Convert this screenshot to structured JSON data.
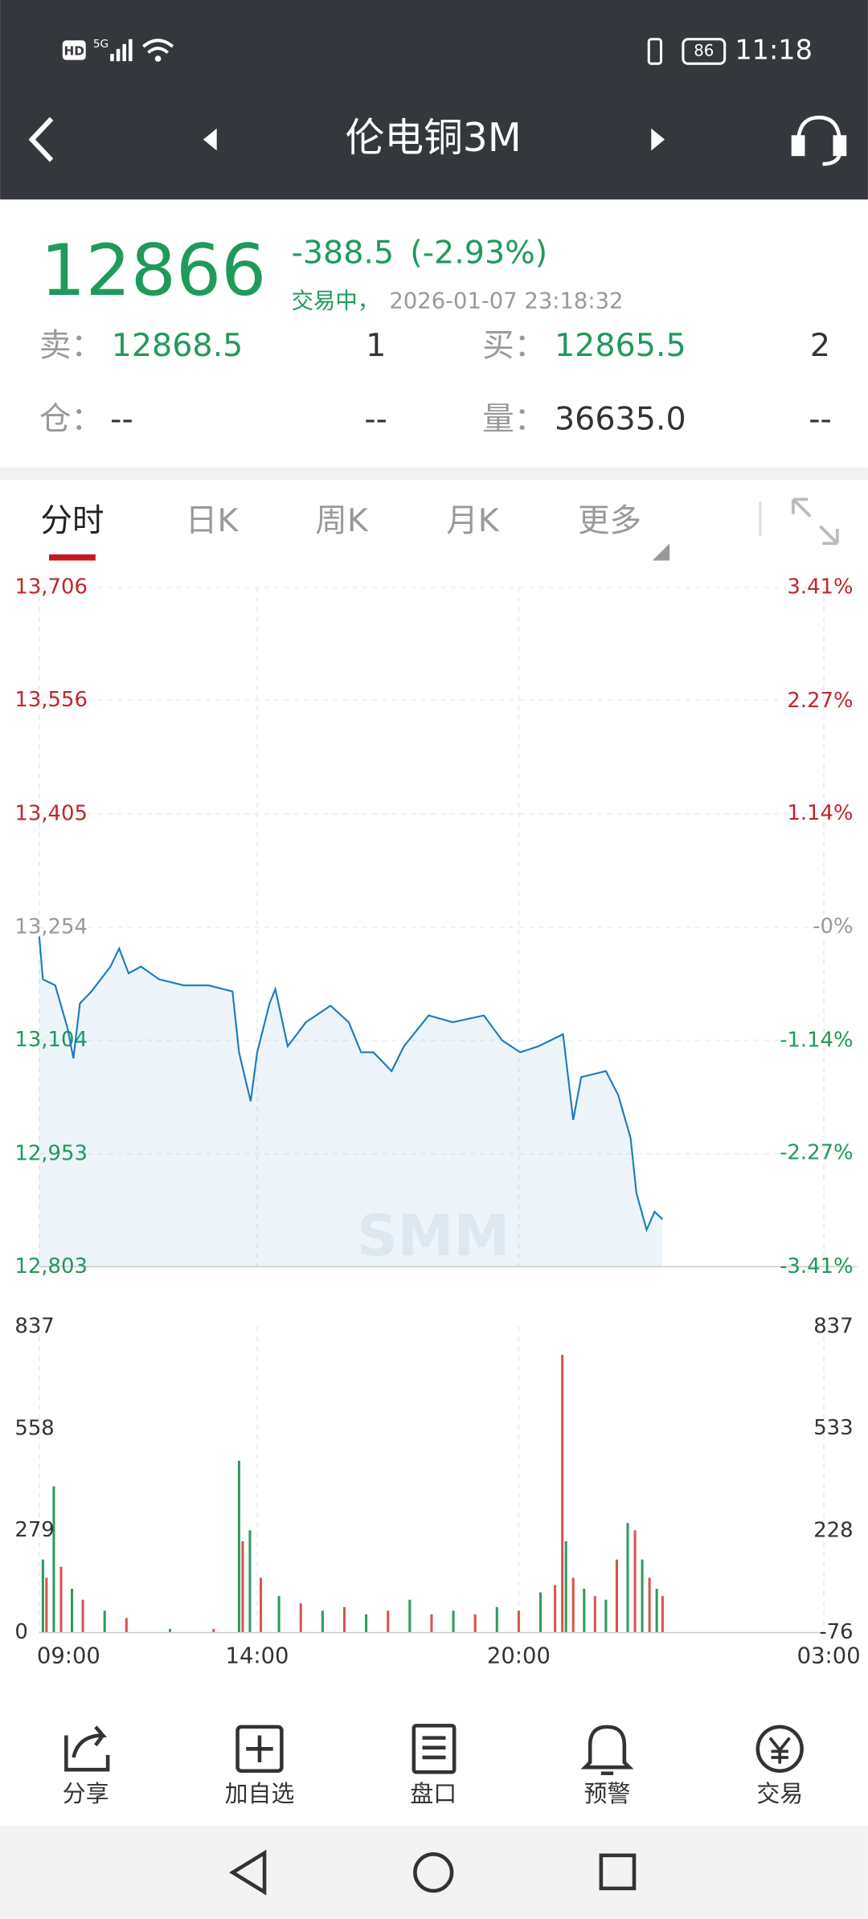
{
  "status": {
    "hd": "HD",
    "network": "5G",
    "battery": "86",
    "time": "11:18"
  },
  "header": {
    "title": "伦电铜3M"
  },
  "quote": {
    "price": "12866",
    "change": "-388.5",
    "change_pct": "(-2.93%)",
    "state": "交易中，",
    "timestamp": "2026-01-07 23:18:32",
    "sell_label": "卖：",
    "sell_price": "12868.5",
    "sell_qty": "1",
    "buy_label": "买：",
    "buy_price": "12865.5",
    "buy_qty": "2",
    "position_label": "仓：",
    "position": "--",
    "position_change": "--",
    "volume_label": "量：",
    "volume": "36635.0",
    "volume_change": "--"
  },
  "tabs": [
    "分时",
    "日K",
    "周K",
    "月K",
    "更多"
  ],
  "chart_data": {
    "type": "line",
    "watermark": "SMM",
    "grid": true,
    "x": [
      "09:00",
      "09:05",
      "09:22",
      "09:39",
      "09:47",
      "09:56",
      "10:12",
      "10:38",
      "10:50",
      "11:03",
      "11:20",
      "11:45",
      "12:19",
      "12:53",
      "13:26",
      "13:35",
      "13:43",
      "13:51",
      "14:00",
      "14:17",
      "14:25",
      "14:42",
      "15:07",
      "15:41",
      "16:06",
      "16:23",
      "16:40",
      "17:05",
      "17:22",
      "17:56",
      "18:29",
      "19:12",
      "19:37",
      "20:02",
      "20:27",
      "21:01",
      "21:15",
      "21:26",
      "22:00",
      "22:17",
      "22:34",
      "22:42",
      "22:56",
      "23:07",
      "23:18"
    ],
    "series": [
      {
        "color": "#1a7bbf",
        "values": [
          13242,
          13185,
          13177,
          13120,
          13080,
          13153,
          13169,
          13202,
          13226,
          13193,
          13202,
          13185,
          13177,
          13177,
          13169,
          13088,
          13055,
          13023,
          13088,
          13153,
          13172,
          13096,
          13128,
          13150,
          13128,
          13088,
          13088,
          13063,
          13096,
          13137,
          13128,
          13137,
          13104,
          13088,
          13096,
          13112,
          12998,
          13055,
          13063,
          13031,
          12974,
          12901,
          12852,
          12876,
          12866
        ]
      }
    ],
    "xlim": [
      "09:00",
      "03:00"
    ],
    "xticks": [
      "09:00",
      "14:00",
      "20:00",
      "03:00"
    ],
    "ylim": [
      12803,
      13706
    ],
    "yticks": [
      {
        "value": 13706,
        "label": "13,706"
      },
      {
        "value": 13556,
        "label": "13,556"
      },
      {
        "value": 13405,
        "label": "13,405"
      },
      {
        "value": 13254,
        "label": "13,254"
      },
      {
        "value": 13104,
        "label": "13,104"
      },
      {
        "value": 12953,
        "label": "12,953"
      },
      {
        "value": 12803,
        "label": "12,803"
      }
    ],
    "y2lim": [
      -3.41,
      3.41
    ],
    "y2ticks": [
      {
        "value": 3.41,
        "label": "3.41%"
      },
      {
        "value": 2.27,
        "label": "2.27%"
      },
      {
        "value": 1.14,
        "label": "1.14%"
      },
      {
        "value": 0,
        "label": "-0%"
      },
      {
        "value": -1.14,
        "label": "-1.14%"
      },
      {
        "value": -2.27,
        "label": "-2.27%"
      },
      {
        "value": -3.41,
        "label": "-3.41%"
      }
    ],
    "volume": {
      "type": "bar",
      "x": [
        "09:05",
        "09:10",
        "09:20",
        "09:30",
        "09:45",
        "10:00",
        "10:30",
        "11:00",
        "12:00",
        "13:00",
        "13:35",
        "13:40",
        "13:50",
        "14:05",
        "14:30",
        "15:00",
        "15:30",
        "16:00",
        "16:30",
        "17:00",
        "17:30",
        "18:00",
        "18:30",
        "19:00",
        "19:30",
        "20:00",
        "20:30",
        "20:50",
        "21:00",
        "21:05",
        "21:15",
        "21:30",
        "21:45",
        "22:00",
        "22:15",
        "22:30",
        "22:40",
        "22:50",
        "23:00",
        "23:10",
        "23:18"
      ],
      "values": [
        200,
        150,
        400,
        180,
        120,
        90,
        60,
        40,
        10,
        10,
        470,
        250,
        280,
        150,
        100,
        80,
        60,
        70,
        50,
        60,
        90,
        50,
        60,
        50,
        70,
        60,
        110,
        130,
        760,
        250,
        150,
        120,
        100,
        90,
        200,
        300,
        280,
        200,
        150,
        120,
        100
      ],
      "colors": [
        "#2e9a5e",
        "#d9534f",
        "#2e9a5e",
        "#d9534f",
        "#2e9a5e",
        "#d9534f",
        "#2e9a5e",
        "#d9534f",
        "#2e9a5e",
        "#d9534f",
        "#2e9a5e",
        "#d9534f",
        "#2e9a5e",
        "#d9534f",
        "#2e9a5e",
        "#d9534f",
        "#2e9a5e",
        "#d9534f",
        "#2e9a5e",
        "#d9534f",
        "#2e9a5e",
        "#d9534f",
        "#2e9a5e",
        "#d9534f",
        "#2e9a5e",
        "#d9534f",
        "#2e9a5e",
        "#d9534f",
        "#d9534f",
        "#2e9a5e",
        "#d9534f",
        "#2e9a5e",
        "#d9534f",
        "#2e9a5e",
        "#d9534f",
        "#2e9a5e",
        "#d9534f",
        "#2e9a5e",
        "#d9534f",
        "#2e9a5e",
        "#d9534f"
      ],
      "ylim": [
        0,
        837
      ],
      "yticks": [
        837,
        558,
        279,
        0
      ],
      "y2lim": [
        -76,
        837
      ],
      "y2ticks": [
        837,
        533,
        228,
        -76
      ]
    }
  },
  "toolbar": [
    "分享",
    "加自选",
    "盘口",
    "预警",
    "交易"
  ]
}
